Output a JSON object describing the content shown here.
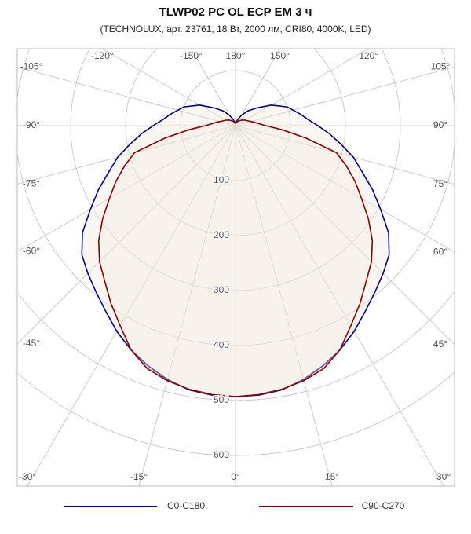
{
  "chart_data": {
    "type": "polar",
    "title": "TLWP02 PC OL ECP EM 3 ч",
    "subtitle": "(TECHNOLUX, арт. 23761, 18 Вт, 2000 лм, CRI80, 4000K, LED)",
    "x": [
      0,
      5,
      10,
      15,
      20,
      25,
      30,
      35,
      40,
      45,
      50,
      55,
      60,
      65,
      70,
      75,
      80,
      85,
      90,
      95,
      100,
      110,
      120,
      130,
      140,
      150,
      160,
      170,
      180
    ],
    "series": [
      {
        "name": "C0-C180",
        "color": "#00007f",
        "values": [
          493,
          492,
          488,
          478,
          465,
          450,
          432,
          412,
          395,
          380,
          365,
          340,
          305,
          275,
          245,
          222,
          195,
          172,
          150,
          132,
          120,
          100,
          75,
          50,
          35,
          22,
          12,
          6,
          4
        ]
      },
      {
        "name": "C90-C270",
        "color": "#8b0000",
        "values": [
          493,
          491,
          487,
          480,
          470,
          450,
          420,
          395,
          370,
          350,
          325,
          295,
          265,
          240,
          215,
          190,
          130,
          85,
          55,
          42,
          35,
          25,
          20,
          16,
          12,
          9,
          7,
          5,
          4
        ]
      }
    ],
    "rticks": [
      100,
      200,
      300,
      400,
      500,
      600
    ],
    "xticks": [
      {
        "value": -30,
        "label": "-30°"
      },
      {
        "value": -15,
        "label": "-15°"
      },
      {
        "value": 0,
        "label": "0°"
      },
      {
        "value": 15,
        "label": "15°"
      },
      {
        "value": 30,
        "label": "30°"
      },
      {
        "value": 45,
        "label": "45°"
      },
      {
        "value": 60,
        "label": "60°"
      },
      {
        "value": 75,
        "label": "75°"
      },
      {
        "value": 90,
        "label": "90°"
      },
      {
        "value": 105,
        "label": "105°"
      },
      {
        "value": 120,
        "label": "120°"
      },
      {
        "value": 150,
        "label": "150°"
      },
      {
        "value": 180,
        "label": "180°"
      },
      {
        "value": -150,
        "label": "-150°"
      },
      {
        "value": -120,
        "label": "-120°"
      },
      {
        "value": -105,
        "label": "-105°"
      },
      {
        "value": -90,
        "label": "-90°"
      },
      {
        "value": -75,
        "label": "-75°"
      },
      {
        "value": -60,
        "label": "-60°"
      },
      {
        "value": -45,
        "label": "-45°"
      }
    ]
  }
}
